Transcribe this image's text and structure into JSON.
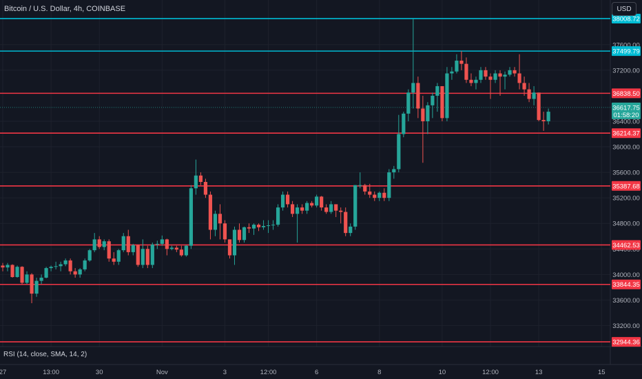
{
  "header": {
    "symbol_title": "Bitcoin / U.S. Dollar, 4h, COINBASE",
    "currency_button": "USD"
  },
  "indicator": {
    "label": "RSI (14, close, SMA, 14, 2)"
  },
  "colors": {
    "background": "#131722",
    "up_candle": "#26a69a",
    "down_candle": "#ef5350",
    "cyan_level": "#00bcd4",
    "red_level": "#f23645",
    "axis_text": "#b2b5be",
    "grid": "#1e222d"
  },
  "chart_data": {
    "type": "candlestick",
    "title": "Bitcoin / U.S. Dollar, 4h, COINBASE",
    "ylim": [
      32870,
      38300
    ],
    "y_ticks": [
      33200,
      33600,
      34000,
      34400,
      34800,
      35200,
      35600,
      36000,
      36400,
      37200,
      37600
    ],
    "x_ticks": [
      "27",
      "13:00",
      "30",
      "Nov",
      "3",
      "12:00",
      "6",
      "8",
      "10",
      "12:00",
      "13",
      "15"
    ],
    "x_tick_index": [
      0,
      10,
      20,
      33,
      46,
      55,
      65,
      78,
      91,
      101,
      111,
      124
    ],
    "last_price": {
      "value": "36617.75",
      "countdown": "01:58:20"
    },
    "levels": [
      {
        "value": 38008.72,
        "label": "38008.72",
        "color": "cyan"
      },
      {
        "value": 37499.79,
        "label": "37499.79",
        "color": "cyan"
      },
      {
        "value": 36838.5,
        "label": "36838.50",
        "color": "red"
      },
      {
        "value": 36214.37,
        "label": "36214.37",
        "color": "red"
      },
      {
        "value": 35387.68,
        "label": "35387.68",
        "color": "red"
      },
      {
        "value": 34462.53,
        "label": "34462.53",
        "color": "red"
      },
      {
        "value": 33844.35,
        "label": "33844.35",
        "color": "red"
      },
      {
        "value": 32944.36,
        "label": "32944.36",
        "color": "red"
      }
    ],
    "ohlc": [
      [
        34140,
        34180,
        34050,
        34110
      ],
      [
        34110,
        34180,
        34050,
        34150
      ],
      [
        34150,
        34160,
        33950,
        33960
      ],
      [
        33960,
        34140,
        33950,
        34120
      ],
      [
        34120,
        34130,
        33850,
        33870
      ],
      [
        33870,
        34050,
        33850,
        34000
      ],
      [
        34000,
        34020,
        33550,
        33700
      ],
      [
        33700,
        33950,
        33650,
        33900
      ],
      [
        33900,
        34000,
        33850,
        33950
      ],
      [
        33950,
        34120,
        33940,
        34100
      ],
      [
        34100,
        34140,
        34050,
        34120
      ],
      [
        34120,
        34200,
        34080,
        34130
      ],
      [
        34130,
        34200,
        34050,
        34160
      ],
      [
        34160,
        34250,
        34130,
        34220
      ],
      [
        34220,
        34250,
        34000,
        34050
      ],
      [
        34050,
        34100,
        33950,
        34000
      ],
      [
        34000,
        34100,
        33950,
        34080
      ],
      [
        34080,
        34250,
        34050,
        34220
      ],
      [
        34220,
        34400,
        34200,
        34380
      ],
      [
        34380,
        34650,
        34350,
        34550
      ],
      [
        34550,
        34600,
        34400,
        34430
      ],
      [
        34430,
        34550,
        34380,
        34520
      ],
      [
        34520,
        34550,
        34200,
        34250
      ],
      [
        34250,
        34350,
        34150,
        34200
      ],
      [
        34200,
        34400,
        34150,
        34380
      ],
      [
        34380,
        34650,
        34350,
        34600
      ],
      [
        34600,
        34700,
        34300,
        34350
      ],
      [
        34350,
        34480,
        34300,
        34460
      ],
      [
        34460,
        34470,
        34120,
        34150
      ],
      [
        34150,
        34550,
        34100,
        34400
      ],
      [
        34400,
        34450,
        34100,
        34150
      ],
      [
        34150,
        34500,
        34100,
        34470
      ],
      [
        34470,
        34530,
        34400,
        34480
      ],
      [
        34480,
        34610,
        34450,
        34550
      ],
      [
        34550,
        34560,
        34300,
        34400
      ],
      [
        34400,
        34450,
        34380,
        34420
      ],
      [
        34420,
        34450,
        34350,
        34390
      ],
      [
        34390,
        34450,
        34280,
        34300
      ],
      [
        34300,
        34460,
        34280,
        34450
      ],
      [
        34450,
        35400,
        34400,
        35350
      ],
      [
        35350,
        35800,
        35250,
        35550
      ],
      [
        35550,
        35600,
        35400,
        35450
      ],
      [
        35450,
        35500,
        35200,
        35250
      ],
      [
        35250,
        35300,
        34550,
        34700
      ],
      [
        34700,
        35000,
        34600,
        34950
      ],
      [
        34950,
        35100,
        34550,
        34800
      ],
      [
        34800,
        34850,
        34500,
        34550
      ],
      [
        34550,
        34550,
        34250,
        34300
      ],
      [
        34300,
        34750,
        34150,
        34700
      ],
      [
        34700,
        34800,
        34500,
        34540
      ],
      [
        34540,
        34750,
        34500,
        34740
      ],
      [
        34740,
        34800,
        34650,
        34720
      ],
      [
        34720,
        34800,
        34620,
        34780
      ],
      [
        34780,
        34800,
        34680,
        34740
      ],
      [
        34740,
        34850,
        34700,
        34760
      ],
      [
        34760,
        34850,
        34650,
        34770
      ],
      [
        34770,
        34850,
        34700,
        34780
      ],
      [
        34780,
        35100,
        34750,
        35050
      ],
      [
        35050,
        35300,
        35000,
        35250
      ],
      [
        35250,
        35300,
        35050,
        35100
      ],
      [
        35100,
        35150,
        34900,
        34950
      ],
      [
        34950,
        35100,
        34500,
        35050
      ],
      [
        35050,
        35100,
        34950,
        35000
      ],
      [
        35000,
        35150,
        34950,
        35120
      ],
      [
        35120,
        35150,
        35050,
        35080
      ],
      [
        35080,
        35250,
        35050,
        35220
      ],
      [
        35220,
        35230,
        35000,
        35050
      ],
      [
        35050,
        35100,
        34950,
        34980
      ],
      [
        34980,
        35150,
        34950,
        35100
      ],
      [
        35100,
        35100,
        34900,
        35000
      ],
      [
        35000,
        35050,
        34800,
        34980
      ],
      [
        34980,
        35050,
        34600,
        34650
      ],
      [
        34650,
        34800,
        34600,
        34750
      ],
      [
        34750,
        35400,
        34700,
        35400
      ],
      [
        35400,
        35600,
        35350,
        35400
      ],
      [
        35400,
        35420,
        35250,
        35300
      ],
      [
        35300,
        35420,
        35200,
        35250
      ],
      [
        35250,
        35300,
        35150,
        35200
      ],
      [
        35200,
        35300,
        35150,
        35280
      ],
      [
        35280,
        35350,
        35150,
        35200
      ],
      [
        35200,
        35650,
        35150,
        35600
      ],
      [
        35600,
        35700,
        35500,
        35650
      ],
      [
        35650,
        36500,
        35600,
        36200
      ],
      [
        36200,
        36550,
        36150,
        36520
      ],
      [
        36520,
        36900,
        36400,
        36850
      ],
      [
        36850,
        38008,
        36600,
        37000
      ],
      [
        37000,
        37100,
        36450,
        36600
      ],
      [
        36600,
        36800,
        35750,
        36400
      ],
      [
        36400,
        36700,
        36200,
        36650
      ],
      [
        36650,
        36850,
        36450,
        36800
      ],
      [
        36800,
        37000,
        36550,
        36950
      ],
      [
        36950,
        36950,
        36400,
        36450
      ],
      [
        36450,
        37250,
        36400,
        37150
      ],
      [
        37150,
        37250,
        37050,
        37180
      ],
      [
        37180,
        37450,
        37150,
        37350
      ],
      [
        37350,
        37500,
        37200,
        37300
      ],
      [
        37300,
        37400,
        37000,
        37050
      ],
      [
        37050,
        37150,
        36950,
        37000
      ],
      [
        37000,
        37100,
        36900,
        37050
      ],
      [
        37050,
        37250,
        37000,
        37200
      ],
      [
        37200,
        37250,
        37050,
        37100
      ],
      [
        37100,
        37150,
        36750,
        37050
      ],
      [
        37050,
        37200,
        37000,
        37150
      ],
      [
        37150,
        37200,
        36800,
        37100
      ],
      [
        37100,
        37180,
        36900,
        37130
      ],
      [
        37130,
        37250,
        37100,
        37200
      ],
      [
        37200,
        37250,
        37100,
        37150
      ],
      [
        37150,
        37450,
        36900,
        37000
      ],
      [
        37000,
        37100,
        36800,
        36900
      ],
      [
        36900,
        37000,
        36700,
        36750
      ],
      [
        36750,
        36950,
        36650,
        36850
      ],
      [
        36850,
        36850,
        36400,
        36420
      ],
      [
        36420,
        36550,
        36250,
        36400
      ],
      [
        36400,
        36600,
        36350,
        36550
      ]
    ]
  }
}
